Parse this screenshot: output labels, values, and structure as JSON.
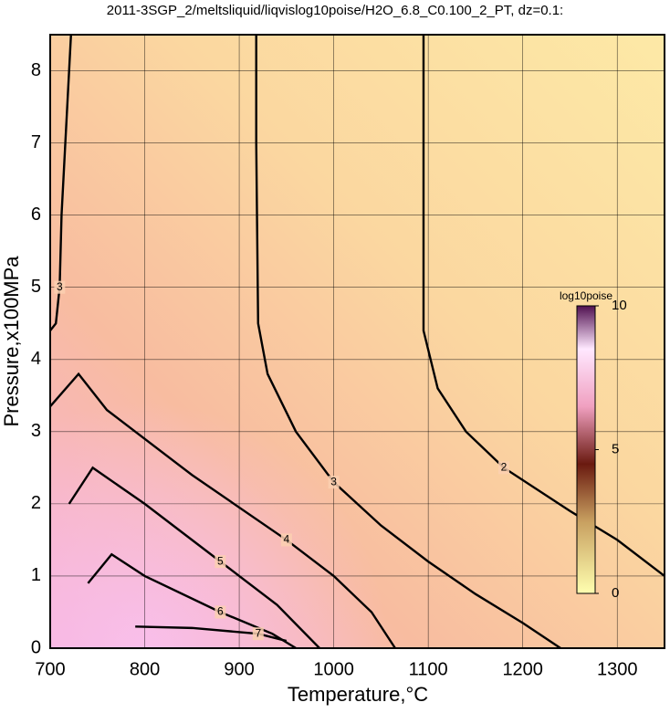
{
  "chart_data": {
    "type": "contour",
    "title": "2011-3SGP_2/meltsliquid/liqvislog10poise/H2O_6.8_C0.100_2_PT, dz=0.1:",
    "x_label": "Temperature,°C",
    "y_label": "Pressure,x100MPa",
    "xlim": [
      700,
      1350
    ],
    "ylim": [
      0,
      8.5
    ],
    "xticks": [
      700,
      800,
      900,
      1000,
      1100,
      1200,
      1300
    ],
    "yticks": [
      0,
      1,
      2,
      3,
      4,
      5,
      6,
      7,
      8
    ],
    "grid": true,
    "contours": [
      {
        "level": 2,
        "x": [
          1095,
          1095,
          1110,
          1140,
          1180,
          1250,
          1300,
          1350
        ],
        "y": [
          8.5,
          4.4,
          3.6,
          3.0,
          2.5,
          1.9,
          1.5,
          1.0
        ]
      },
      {
        "level": 3,
        "x": [
          918,
          918,
          920,
          930,
          960,
          1000,
          1050,
          1100,
          1150,
          1200,
          1240
        ],
        "y": [
          8.5,
          7,
          4.5,
          3.8,
          3.0,
          2.3,
          1.7,
          1.2,
          0.75,
          0.35,
          0
        ]
      },
      {
        "level": 3,
        "x": [
          722,
          716,
          712,
          710,
          706,
          700
        ],
        "y": [
          8.5,
          7,
          6,
          5,
          4.5,
          4.4
        ]
      },
      {
        "level": 4,
        "x": [
          700,
          730,
          760,
          850,
          950,
          1000,
          1040,
          1065
        ],
        "y": [
          3.35,
          3.8,
          3.3,
          2.4,
          1.5,
          1.0,
          0.5,
          0
        ]
      },
      {
        "level": 5,
        "x": [
          720,
          745,
          800,
          880,
          940,
          985
        ],
        "y": [
          2.0,
          2.5,
          2.0,
          1.2,
          0.6,
          0
        ]
      },
      {
        "level": 6,
        "x": [
          740,
          765,
          800,
          880,
          935,
          960
        ],
        "y": [
          0.9,
          1.3,
          1.0,
          0.5,
          0.2,
          0
        ]
      },
      {
        "level": 7,
        "x": [
          790,
          850,
          920,
          950
        ],
        "y": [
          0.3,
          0.28,
          0.2,
          0.1
        ]
      }
    ],
    "colorbar": {
      "label": "log10poise",
      "lim": [
        0,
        10
      ],
      "ticks": [
        0,
        5,
        10
      ]
    }
  }
}
